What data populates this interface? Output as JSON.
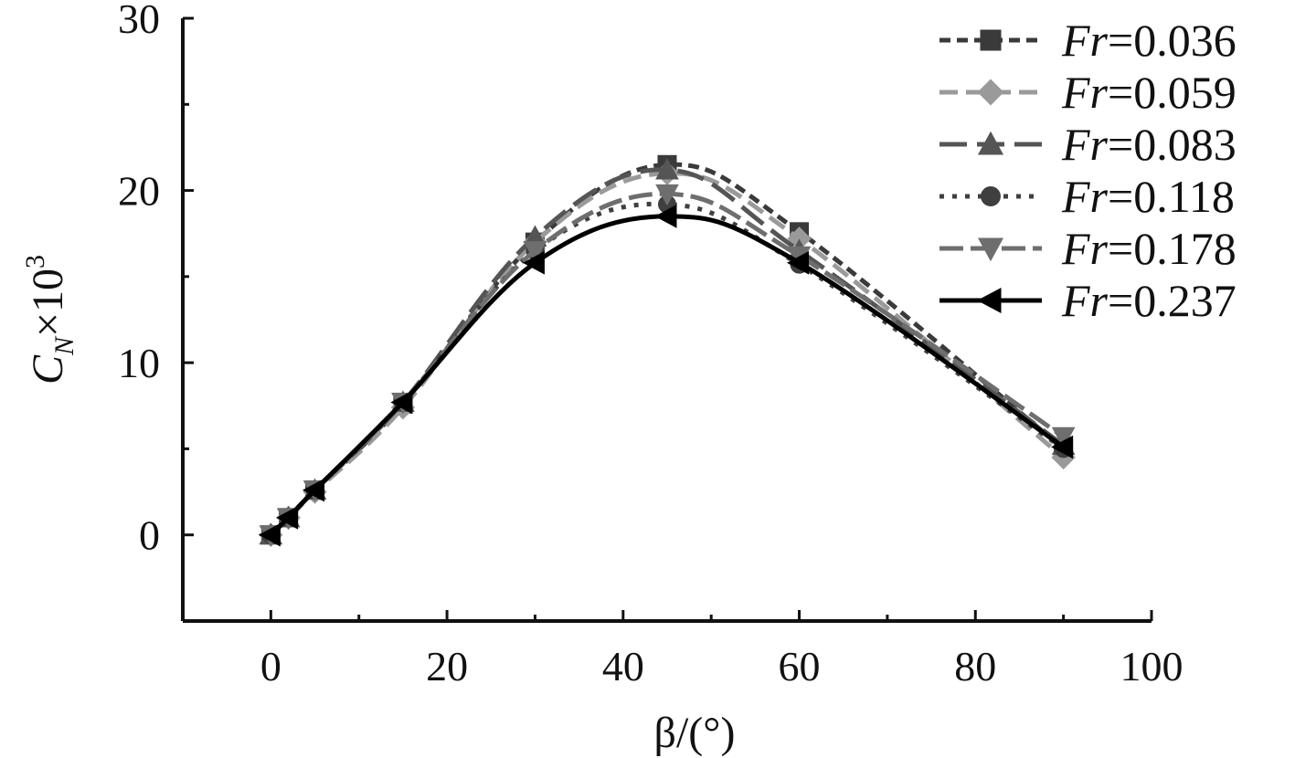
{
  "chart_data": {
    "type": "line",
    "xlabel": "β/(°)",
    "ylabel": "C_N×10³",
    "ylabel_parts": {
      "base": "C",
      "sub": "N",
      "times": "×10",
      "sup": "3"
    },
    "xlim": [
      -10,
      100
    ],
    "ylim": [
      -5,
      30
    ],
    "x_ticks": [
      0,
      20,
      40,
      60,
      80,
      100
    ],
    "y_ticks": [
      0,
      10,
      20,
      30
    ],
    "x_tick_labels": [
      "0",
      "20",
      "40",
      "60",
      "80",
      "100"
    ],
    "y_tick_labels": [
      "0",
      "10",
      "20",
      "30"
    ],
    "grid": false,
    "legend_position": "top-right",
    "series": [
      {
        "name": "Fr=0.036",
        "fr_label": "Fr",
        "fr_value": "=0.036",
        "color": "#3a3a3a",
        "marker": "square",
        "dash": "12 7",
        "width": 5,
        "x": [
          0,
          2,
          5,
          15,
          30,
          45,
          60,
          90
        ],
        "y": [
          0,
          1.0,
          2.6,
          7.6,
          17.0,
          21.5,
          17.6,
          5.0
        ]
      },
      {
        "name": "Fr=0.059",
        "fr_label": "Fr",
        "fr_value": "=0.059",
        "color": "#9a9a9a",
        "marker": "diamond",
        "dash": "20 9",
        "width": 5,
        "x": [
          0,
          2,
          5,
          15,
          30,
          45,
          60,
          90
        ],
        "y": [
          0,
          1.0,
          2.5,
          7.4,
          17.0,
          21.0,
          17.2,
          4.5
        ]
      },
      {
        "name": "Fr=0.083",
        "fr_label": "Fr",
        "fr_value": "=0.083",
        "color": "#555555",
        "marker": "triangle-up",
        "dash": "30 11",
        "width": 5,
        "x": [
          0,
          2,
          5,
          15,
          30,
          45,
          60,
          90
        ],
        "y": [
          0,
          1.0,
          2.6,
          7.7,
          17.3,
          21.2,
          16.5,
          5.2
        ]
      },
      {
        "name": "Fr=0.118",
        "fr_label": "Fr",
        "fr_value": "=0.118",
        "color": "#3f3f3f",
        "marker": "circle",
        "dash": "5 9",
        "width": 5,
        "x": [
          0,
          2,
          5,
          15,
          30,
          45,
          60,
          90
        ],
        "y": [
          0,
          1.0,
          2.6,
          7.7,
          16.5,
          19.2,
          15.7,
          5.0
        ]
      },
      {
        "name": "Fr=0.178",
        "fr_label": "Fr",
        "fr_value": "=0.178",
        "color": "#6e6e6e",
        "marker": "triangle-down",
        "dash": "26 8",
        "width": 5,
        "x": [
          0,
          2,
          5,
          15,
          30,
          45,
          60,
          90
        ],
        "y": [
          0,
          1.0,
          2.6,
          7.7,
          16.5,
          19.8,
          16.2,
          5.7
        ]
      },
      {
        "name": "Fr=0.237",
        "fr_label": "Fr",
        "fr_value": "=0.237",
        "color": "#000000",
        "marker": "triangle-left",
        "dash": "",
        "width": 5,
        "x": [
          0,
          2,
          5,
          15,
          30,
          45,
          60,
          90
        ],
        "y": [
          0,
          1.0,
          2.6,
          7.7,
          15.8,
          18.5,
          15.8,
          5.1
        ]
      }
    ]
  }
}
